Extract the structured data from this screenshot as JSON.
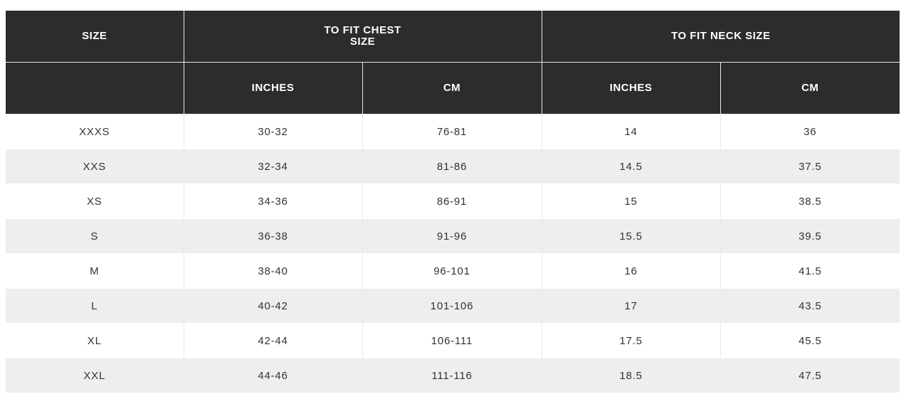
{
  "header": {
    "size": "SIZE",
    "chest_line1": "TO FIT CHEST",
    "chest_line2": "SIZE",
    "neck": "TO FIT NECK SIZE",
    "sub": [
      "",
      "INCHES",
      "CM",
      "INCHES",
      "CM"
    ]
  },
  "rows": [
    [
      "XXXS",
      "30-32",
      "76-81",
      "14",
      "36"
    ],
    [
      "XXS",
      "32-34",
      "81-86",
      "14.5",
      "37.5"
    ],
    [
      "XS",
      "34-36",
      "86-91",
      "15",
      "38.5"
    ],
    [
      "S",
      "36-38",
      "91-96",
      "15.5",
      "39.5"
    ],
    [
      "M",
      "38-40",
      "96-101",
      "16",
      "41.5"
    ],
    [
      "L",
      "40-42",
      "101-106",
      "17",
      "43.5"
    ],
    [
      "XL",
      "42-44",
      "106-111",
      "17.5",
      "45.5"
    ],
    [
      "XXL",
      "44-46",
      "111-116",
      "18.5",
      "47.5"
    ]
  ]
}
